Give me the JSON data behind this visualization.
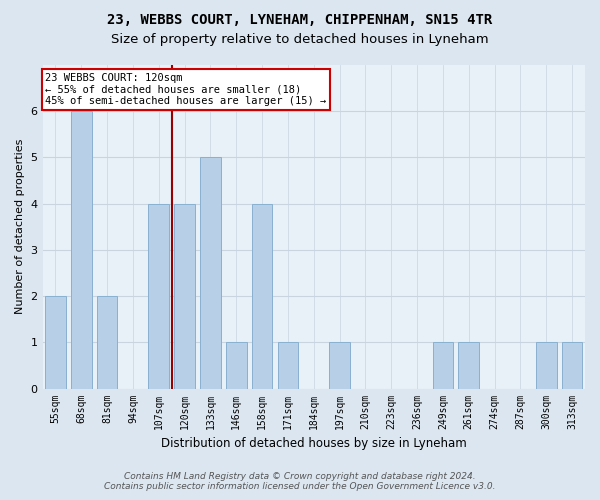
{
  "title1": "23, WEBBS COURT, LYNEHAM, CHIPPENHAM, SN15 4TR",
  "title2": "Size of property relative to detached houses in Lyneham",
  "xlabel": "Distribution of detached houses by size in Lyneham",
  "ylabel": "Number of detached properties",
  "categories": [
    "55sqm",
    "68sqm",
    "81sqm",
    "94sqm",
    "107sqm",
    "120sqm",
    "133sqm",
    "146sqm",
    "158sqm",
    "171sqm",
    "184sqm",
    "197sqm",
    "210sqm",
    "223sqm",
    "236sqm",
    "249sqm",
    "261sqm",
    "274sqm",
    "287sqm",
    "300sqm",
    "313sqm"
  ],
  "values": [
    2,
    6,
    2,
    0,
    4,
    4,
    5,
    1,
    4,
    1,
    0,
    1,
    0,
    0,
    0,
    1,
    1,
    0,
    0,
    1,
    1
  ],
  "bar_color": "#b8cfe8",
  "bar_edge_color": "#8ab0d0",
  "vline_x": 4.5,
  "vline_color": "#990000",
  "annotation_text": "23 WEBBS COURT: 120sqm\n← 55% of detached houses are smaller (18)\n45% of semi-detached houses are larger (15) →",
  "annotation_box_facecolor": "#ffffff",
  "annotation_box_edgecolor": "#cc0000",
  "ylim": [
    0,
    7
  ],
  "yticks": [
    0,
    1,
    2,
    3,
    4,
    5,
    6
  ],
  "footer1": "Contains HM Land Registry data © Crown copyright and database right 2024.",
  "footer2": "Contains public sector information licensed under the Open Government Licence v3.0.",
  "bg_color": "#dce6f0",
  "plot_bg_color": "#e8f0f8",
  "grid_color": "#c8d4e0",
  "title1_fontsize": 10,
  "title2_fontsize": 9.5,
  "xlabel_fontsize": 8.5,
  "ylabel_fontsize": 8,
  "tick_fontsize": 7,
  "annot_fontsize": 7.5,
  "footer_fontsize": 6.5
}
